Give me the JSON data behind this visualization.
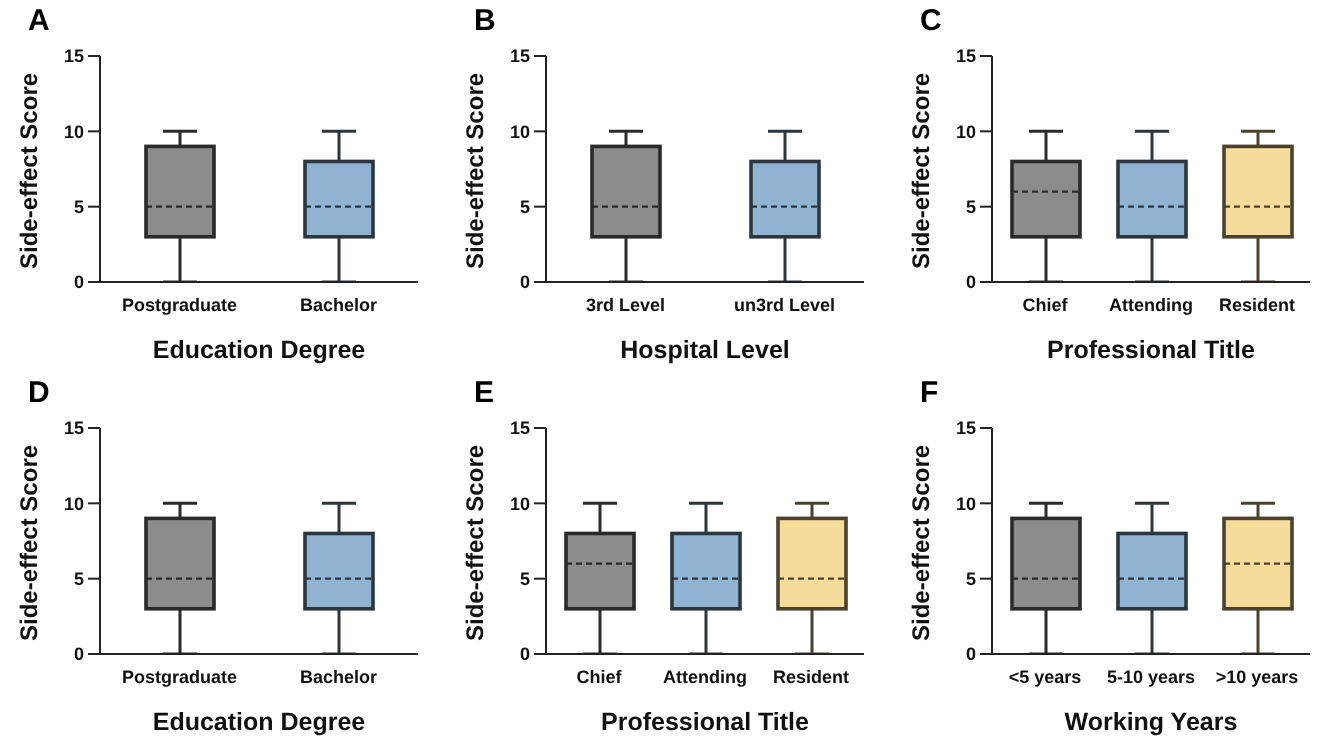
{
  "chart_data": [
    {
      "type": "box",
      "title": "A",
      "xlabel": "Education Degree",
      "ylabel": "Side-effect Score",
      "categories": [
        "Postgraduate",
        "Bachelor"
      ],
      "colors": [
        "#8c8c8c",
        "#8fb3d0"
      ],
      "ylim": [
        0,
        15
      ],
      "yticks": [
        0,
        5,
        10,
        15
      ],
      "grid": false,
      "boxes": [
        {
          "low": 0,
          "q1": 3,
          "median": 5,
          "q3": 9,
          "high": 10
        },
        {
          "low": 0,
          "q1": 3,
          "median": 5,
          "q3": 8,
          "high": 10
        }
      ]
    },
    {
      "type": "box",
      "title": "B",
      "xlabel": "Hospital Level",
      "ylabel": "Side-effect Score",
      "categories": [
        "3rd Level",
        "un3rd Level"
      ],
      "colors": [
        "#8c8c8c",
        "#8fb3d0"
      ],
      "ylim": [
        0,
        15
      ],
      "yticks": [
        0,
        5,
        10,
        15
      ],
      "grid": false,
      "boxes": [
        {
          "low": 0,
          "q1": 3,
          "median": 5,
          "q3": 9,
          "high": 10
        },
        {
          "low": 0,
          "q1": 3,
          "median": 5,
          "q3": 8,
          "high": 10
        }
      ]
    },
    {
      "type": "box",
      "title": "C",
      "xlabel": "Professional Title",
      "ylabel": "Side-effect Score",
      "categories": [
        "Chief",
        "Attending",
        "Resident"
      ],
      "colors": [
        "#8c8c8c",
        "#8fb3d0",
        "#f6dc9a"
      ],
      "ylim": [
        0,
        15
      ],
      "yticks": [
        0,
        5,
        10,
        15
      ],
      "grid": false,
      "boxes": [
        {
          "low": 0,
          "q1": 3,
          "median": 6,
          "q3": 8,
          "high": 10
        },
        {
          "low": 0,
          "q1": 3,
          "median": 5,
          "q3": 8,
          "high": 10
        },
        {
          "low": 0,
          "q1": 3,
          "median": 5,
          "q3": 9,
          "high": 10
        }
      ]
    },
    {
      "type": "box",
      "title": "D",
      "xlabel": "Education Degree",
      "ylabel": "Side-effect Score",
      "categories": [
        "Postgraduate",
        "Bachelor"
      ],
      "colors": [
        "#8c8c8c",
        "#8fb3d0"
      ],
      "ylim": [
        0,
        15
      ],
      "yticks": [
        0,
        5,
        10,
        15
      ],
      "grid": false,
      "boxes": [
        {
          "low": 0,
          "q1": 3,
          "median": 5,
          "q3": 9,
          "high": 10
        },
        {
          "low": 0,
          "q1": 3,
          "median": 5,
          "q3": 8,
          "high": 10
        }
      ]
    },
    {
      "type": "box",
      "title": "E",
      "xlabel": "Professional Title",
      "ylabel": "Side-effect Score",
      "categories": [
        "Chief",
        "Attending",
        "Resident"
      ],
      "colors": [
        "#8c8c8c",
        "#8fb3d0",
        "#f6dc9a"
      ],
      "ylim": [
        0,
        15
      ],
      "yticks": [
        0,
        5,
        10,
        15
      ],
      "grid": false,
      "boxes": [
        {
          "low": 0,
          "q1": 3,
          "median": 6,
          "q3": 8,
          "high": 10
        },
        {
          "low": 0,
          "q1": 3,
          "median": 5,
          "q3": 8,
          "high": 10
        },
        {
          "low": 0,
          "q1": 3,
          "median": 5,
          "q3": 9,
          "high": 10
        }
      ]
    },
    {
      "type": "box",
      "title": "F",
      "xlabel": "Working Years",
      "ylabel": "Side-effect Score",
      "categories": [
        "<5 years",
        "5-10 years",
        ">10 years"
      ],
      "colors": [
        "#8c8c8c",
        "#8fb3d0",
        "#f6dc9a"
      ],
      "ylim": [
        0,
        15
      ],
      "yticks": [
        0,
        5,
        10,
        15
      ],
      "grid": false,
      "boxes": [
        {
          "low": 0,
          "q1": 3,
          "median": 5,
          "q3": 9,
          "high": 10
        },
        {
          "low": 0,
          "q1": 3,
          "median": 5,
          "q3": 8,
          "high": 10
        },
        {
          "low": 0,
          "q1": 3,
          "median": 6,
          "q3": 9,
          "high": 10
        }
      ]
    }
  ]
}
